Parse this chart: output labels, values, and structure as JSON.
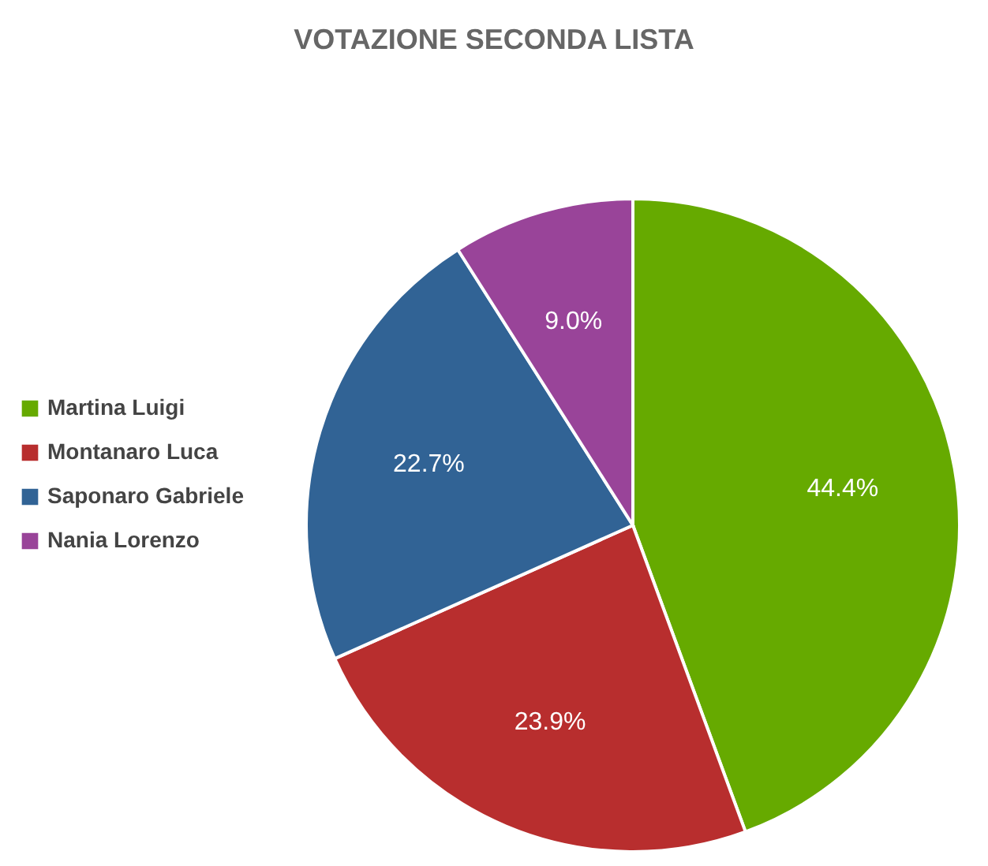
{
  "chart_data": {
    "type": "pie",
    "title": "VOTAZIONE SECONDA LISTA",
    "categories": [
      "Martina Luigi",
      "Montanaro Luca",
      "Saponaro Gabriele",
      "Nania Lorenzo"
    ],
    "values": [
      44.4,
      23.9,
      22.7,
      9.0
    ],
    "colors": [
      "#66aa00",
      "#b82e2e",
      "#316395",
      "#994499"
    ],
    "value_labels": [
      "44.4%",
      "23.9%",
      "22.7%",
      "9.0%"
    ],
    "legend": "left"
  }
}
